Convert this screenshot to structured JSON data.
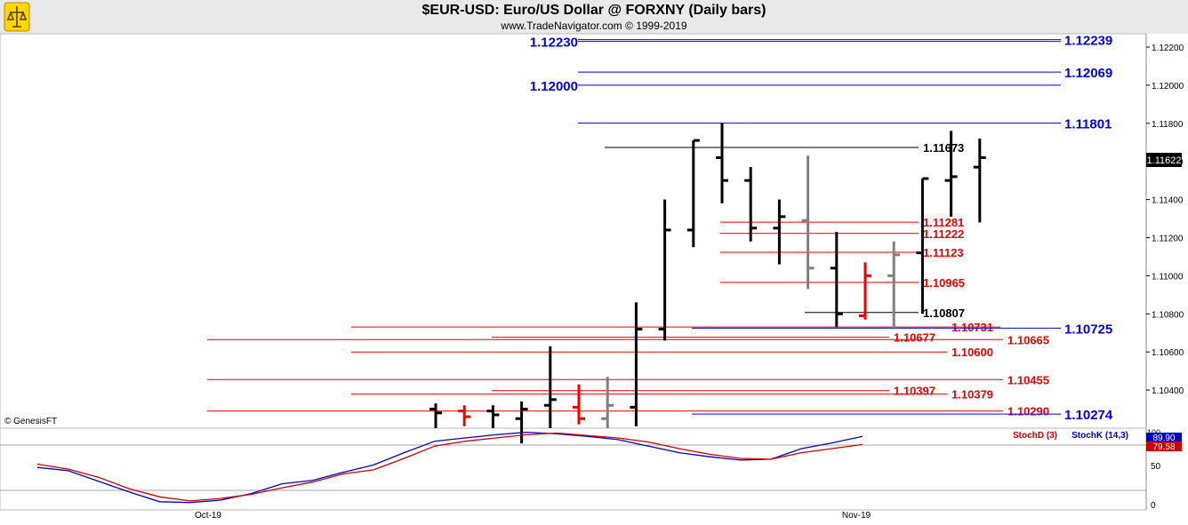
{
  "header": {
    "title": "$EUR-USD:  Euro/US Dollar @ FORXNY  (Daily bars)",
    "subtitle": "www.TradeNavigator.com © 1999-2019"
  },
  "colors": {
    "bull": "#000000",
    "bear": "#ee0000",
    "neutral": "#808080",
    "blue": "#0000ee",
    "red": "#ee0000",
    "stochK": "#0000cc",
    "stochD": "#cc0000"
  },
  "chart_data": [
    {
      "type": "ohlc",
      "title": "$EUR-USD:  Euro/US Dollar @ FORXNY  (Daily bars)",
      "ylim": [
        1.102,
        1.1227
      ],
      "y_ticks": [
        "1.10400",
        "1.10600",
        "1.10800",
        "1.11000",
        "1.11200",
        "1.11400",
        "1.11600",
        "1.11800",
        "1.12000",
        "1.12200"
      ],
      "x_labels": [
        "Oct-19",
        "Nov-19"
      ],
      "last_price": "1.11622",
      "copyright": "© GenesisFT",
      "bars": [
        {
          "o": 1.103,
          "h": 1.1033,
          "l": 1.102,
          "c": 1.1028,
          "color": "bull"
        },
        {
          "o": 1.1029,
          "h": 1.1032,
          "l": 1.1021,
          "c": 1.1026,
          "color": "bear"
        },
        {
          "o": 1.1029,
          "h": 1.1032,
          "l": 1.102,
          "c": 1.1027,
          "color": "bull"
        },
        {
          "o": 1.1025,
          "h": 1.1034,
          "l": 1.1012,
          "c": 1.103,
          "color": "bull"
        },
        {
          "o": 1.1032,
          "h": 1.1063,
          "l": 1.102,
          "c": 1.1035,
          "color": "bull"
        },
        {
          "o": 1.1031,
          "h": 1.1043,
          "l": 1.1022,
          "c": 1.1025,
          "color": "bear"
        },
        {
          "o": 1.1025,
          "h": 1.1047,
          "l": 1.102,
          "c": 1.1032,
          "color": "neutral"
        },
        {
          "o": 1.1031,
          "h": 1.1086,
          "l": 1.1021,
          "c": 1.1072,
          "color": "bull"
        },
        {
          "o": 1.1072,
          "h": 1.114,
          "l": 1.1066,
          "c": 1.1124,
          "color": "bull"
        },
        {
          "o": 1.1124,
          "h": 1.1171,
          "l": 1.1115,
          "c": 1.1171,
          "color": "bull"
        },
        {
          "o": 1.1162,
          "h": 1.118,
          "l": 1.1138,
          "c": 1.115,
          "color": "bull"
        },
        {
          "o": 1.115,
          "h": 1.1157,
          "l": 1.1118,
          "c": 1.1125,
          "color": "bull"
        },
        {
          "o": 1.1125,
          "h": 1.114,
          "l": 1.1106,
          "c": 1.1131,
          "color": "bull"
        },
        {
          "o": 1.1129,
          "h": 1.1163,
          "l": 1.1093,
          "c": 1.1104,
          "color": "neutral"
        },
        {
          "o": 1.1104,
          "h": 1.1123,
          "l": 1.1073,
          "c": 1.108,
          "color": "bull"
        },
        {
          "o": 1.1079,
          "h": 1.1107,
          "l": 1.1077,
          "c": 1.11,
          "color": "bear"
        },
        {
          "o": 1.11,
          "h": 1.1118,
          "l": 1.1073,
          "c": 1.1111,
          "color": "neutral"
        },
        {
          "o": 1.1112,
          "h": 1.1151,
          "l": 1.108,
          "c": 1.1151,
          "color": "bull"
        },
        {
          "o": 1.115,
          "h": 1.1176,
          "l": 1.1131,
          "c": 1.1152,
          "color": "bull"
        },
        {
          "o": 1.1157,
          "h": 1.1172,
          "l": 1.1128,
          "c": 1.1162,
          "color": "bull"
        }
      ],
      "levels": [
        {
          "value": 1.12239,
          "label": "1.12239",
          "color": "blue",
          "label_side": "right"
        },
        {
          "value": 1.1223,
          "label": "1.12230",
          "color": "blue",
          "label_side": "left"
        },
        {
          "value": 1.12069,
          "label": "1.12069",
          "color": "blue",
          "label_side": "right"
        },
        {
          "value": 1.12,
          "label": "1.12000",
          "color": "blue",
          "label_side": "left"
        },
        {
          "value": 1.11801,
          "label": "1.11801",
          "color": "blue",
          "label_side": "right"
        },
        {
          "value": 1.11673,
          "label": "1.11673",
          "color": "bull",
          "label_side": "mid"
        },
        {
          "value": 1.11281,
          "label": "1.11281",
          "color": "red",
          "label_side": "mid"
        },
        {
          "value": 1.11222,
          "label": "1.11222",
          "color": "red",
          "label_side": "mid"
        },
        {
          "value": 1.11123,
          "label": "1.11123",
          "color": "red",
          "label_side": "mid"
        },
        {
          "value": 1.10965,
          "label": "1.10965",
          "color": "red",
          "label_side": "mid"
        },
        {
          "value": 1.10807,
          "label": "1.10807",
          "color": "bull",
          "label_side": "mid"
        },
        {
          "value": 1.10731,
          "label": "1.10731",
          "color": "red",
          "label_side": "mid"
        },
        {
          "value": 1.10725,
          "label": "1.10725",
          "color": "blue",
          "label_side": "right"
        },
        {
          "value": 1.10677,
          "label": "1.10677",
          "color": "red",
          "label_side": "mid"
        },
        {
          "value": 1.10665,
          "label": "1.10665",
          "color": "red",
          "label_side": "mid"
        },
        {
          "value": 1.106,
          "label": "1.10600",
          "color": "red",
          "label_side": "mid"
        },
        {
          "value": 1.10455,
          "label": "1.10455",
          "color": "red",
          "label_side": "mid"
        },
        {
          "value": 1.10397,
          "label": "1.10397",
          "color": "red",
          "label_side": "mid"
        },
        {
          "value": 1.10379,
          "label": "1.10379",
          "color": "red",
          "label_side": "mid"
        },
        {
          "value": 1.1029,
          "label": "1.10290",
          "color": "red",
          "label_side": "mid"
        },
        {
          "value": 1.10274,
          "label": "1.10274",
          "color": "blue",
          "label_side": "right"
        }
      ]
    },
    {
      "type": "line",
      "ylim": [
        0,
        100
      ],
      "y_ticks": [
        "0",
        "50"
      ],
      "series": [
        {
          "name": "StochK (14,3)",
          "color": "stochK",
          "last_label": "89.90",
          "values": [
            52,
            48,
            35,
            22,
            10,
            9,
            12,
            20,
            32,
            36,
            46,
            55,
            70,
            84,
            88,
            92,
            95,
            93,
            90,
            86,
            78,
            70,
            65,
            61,
            62,
            75,
            82,
            90
          ]
        },
        {
          "name": "StochD (3)",
          "color": "stochD",
          "last_label": "79.58",
          "values": [
            56,
            50,
            40,
            26,
            16,
            11,
            14,
            19,
            27,
            34,
            44,
            49,
            63,
            78,
            84,
            88,
            92,
            94,
            91,
            88,
            83,
            75,
            68,
            63,
            62,
            70,
            75,
            80
          ]
        }
      ]
    }
  ]
}
